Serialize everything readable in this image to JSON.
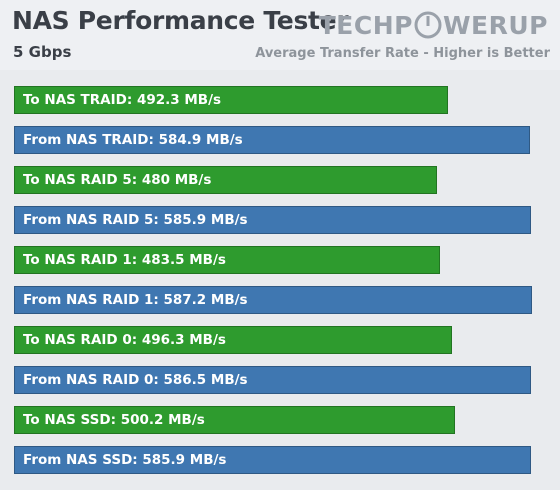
{
  "header": {
    "title": "NAS Performance Tester",
    "subtitle": "5 Gbps",
    "caption": "Average Transfer Rate - Higher is Better",
    "logo_left": "TECHP",
    "logo_right": "WERUP"
  },
  "colors": {
    "to_nas": "#2e9b2e",
    "from_nas": "#3f77b1",
    "header_bg": "#eef0f3",
    "plot_bg": "#e9ebee"
  },
  "chart_data": {
    "type": "bar",
    "orientation": "horizontal",
    "unit": "MB/s",
    "xlim": [
      0,
      600
    ],
    "grid": false,
    "categories": [
      "To NAS TRAID",
      "From NAS TRAID",
      "To NAS RAID 5",
      "From NAS RAID 5",
      "To NAS RAID 1",
      "From NAS RAID 1",
      "To NAS RAID 0",
      "From NAS RAID 0",
      "To NAS SSD",
      "From NAS SSD"
    ],
    "values": [
      492.3,
      584.9,
      480,
      585.9,
      483.5,
      587.2,
      496.3,
      586.5,
      500.2,
      585.9
    ],
    "labels": [
      "To NAS TRAID: 492.3 MB/s",
      "From NAS TRAID: 584.9 MB/s",
      "To NAS RAID 5: 480 MB/s",
      "From NAS RAID 5: 585.9 MB/s",
      "To NAS RAID 1: 483.5 MB/s",
      "From NAS RAID 1: 587.2 MB/s",
      "To NAS RAID 0: 496.3 MB/s",
      "From NAS RAID 0: 586.5 MB/s",
      "To NAS SSD: 500.2 MB/s",
      "From NAS SSD: 585.9 MB/s"
    ],
    "bar_direction": [
      "to",
      "from",
      "to",
      "from",
      "to",
      "from",
      "to",
      "from",
      "to",
      "from"
    ]
  }
}
